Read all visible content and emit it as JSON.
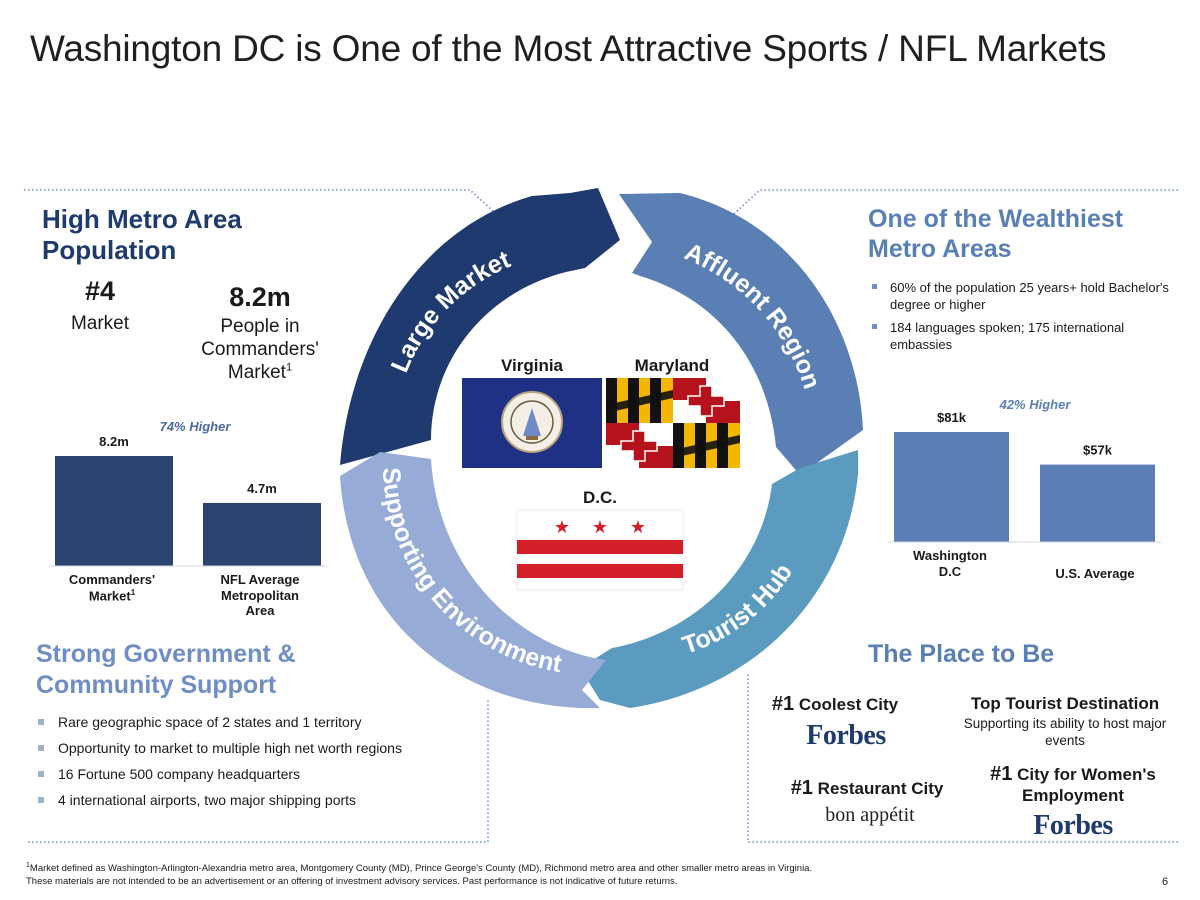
{
  "title": "Washington DC is One of the Most Attractive Sports / NFL Markets",
  "population": {
    "heading": "High Metro Area Population",
    "rank": "#4",
    "rank_label": "Market",
    "people": "8.2m",
    "people_label": "People in Commanders' Market",
    "people_sup": "1"
  },
  "chart_data": [
    {
      "type": "bar",
      "categories": [
        "Commanders' Market",
        "NFL Average Metropolitan Area"
      ],
      "values": [
        8.2,
        4.7
      ],
      "value_labels": [
        "8.2m",
        "4.7m"
      ],
      "annotation": "74% Higher",
      "color": "#2c4470"
    },
    {
      "type": "bar",
      "categories": [
        "Washington D.C",
        "U.S. Average"
      ],
      "values": [
        81,
        57
      ],
      "value_labels": [
        "$81k",
        "$57k"
      ],
      "annotation": "42% Higher",
      "color": "#5a7fb4"
    }
  ],
  "labels": {
    "commanders_market_line1": "Commanders'",
    "commanders_market_line2": "Market",
    "nfl_line1": "NFL Average",
    "nfl_line2": "Metropolitan",
    "nfl_line3": "Area",
    "washington_line1": "Washington",
    "washington_line2": "D.C",
    "us_average": "U.S. Average",
    "sup": "1"
  },
  "wealth": {
    "heading": "One of the Wealthiest Metro Areas",
    "bullets": [
      "60% of the population 25 years+ hold Bachelor's degree or higher",
      "184 languages spoken; 175 international embassies"
    ]
  },
  "government": {
    "heading": "Strong Government & Community Support",
    "bullets": [
      "Rare geographic space of 2 states and 1 territory",
      "Opportunity to market to multiple high net worth regions",
      "16 Fortune 500 company headquarters",
      "4 international airports, two major shipping ports"
    ]
  },
  "place": {
    "heading": "The Place to Be",
    "coolest_num": "#1",
    "coolest": "Coolest City",
    "forbes": "Forbes",
    "restaurant_num": "#1",
    "restaurant": "Restaurant City",
    "bon_appetit": "bon appétit",
    "tourist": "Top Tourist Destination",
    "tourist_sub": "Supporting its ability to host major events",
    "women_num": "#1",
    "women": "City for Women's Employment"
  },
  "wheel": {
    "segments": [
      "Large Market",
      "Affluent Region",
      "Tourist Hub",
      "Supporting Environment"
    ],
    "colors": [
      "#1f3a6e",
      "#5a7fb4",
      "#5a9bbf",
      "#96acd6"
    ]
  },
  "flags": {
    "virginia": "Virginia",
    "maryland": "Maryland",
    "dc": "D.C."
  },
  "footnote_line1": "Market defined as Washington-Arlington-Alexandria metro area, Montgomery County (MD), Prince George's County (MD), Richmond metro area and other smaller metro areas in Virginia.",
  "footnote_line2": "These materials are not intended to be an advertisement or an offering of investment advisory services. Past performance is not indicative of future returns.",
  "footnote_sup": "1",
  "page_number": "6"
}
